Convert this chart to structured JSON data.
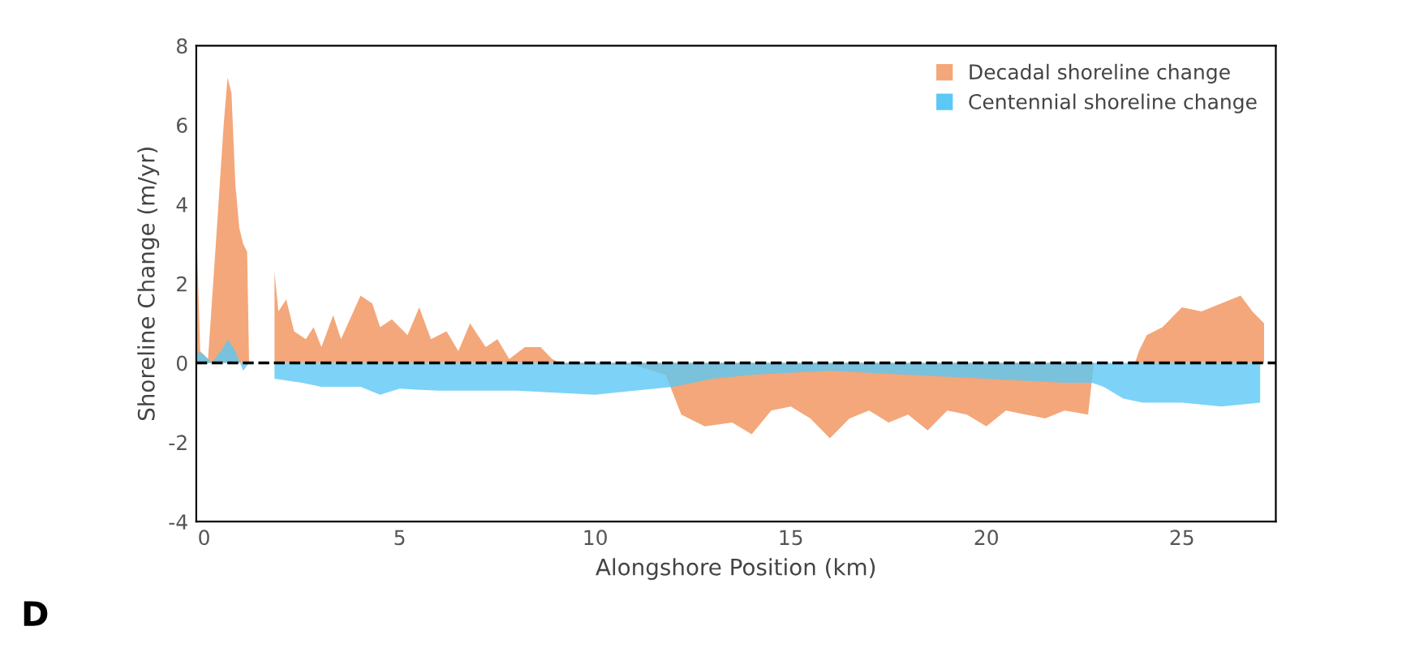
{
  "chart_data": {
    "type": "area",
    "xlabel": "Alongshore Position (km)",
    "ylabel": "Shoreline Change (m/yr)",
    "xlim": [
      -0.2,
      27.4
    ],
    "xticks": [
      0,
      5,
      10,
      15,
      20,
      25
    ],
    "ylim": [
      -4,
      8
    ],
    "yticks": [
      -4,
      -2,
      0,
      2,
      4,
      6,
      8
    ],
    "grid": false,
    "legend": "top right",
    "ref_lines": [
      {
        "axis": "y",
        "value": 0,
        "line_style": "dashed",
        "color": "#000000"
      }
    ],
    "annotations": [
      "D"
    ],
    "series": [
      {
        "name": "Decadal shoreline change",
        "color": "#f4a77a",
        "x": [
          -0.2,
          -0.1,
          0.1,
          0.3,
          0.5,
          0.6,
          0.7,
          0.8,
          0.9,
          1.0,
          1.1,
          1.15,
          1.3,
          1.8,
          1.9,
          2.1,
          2.3,
          2.6,
          2.8,
          3.0,
          3.3,
          3.5,
          4.0,
          4.3,
          4.5,
          4.8,
          5.2,
          5.5,
          5.8,
          6.2,
          6.5,
          6.8,
          7.2,
          7.5,
          7.8,
          8.2,
          8.6,
          8.9,
          9.2,
          10,
          11,
          11.8,
          12.2,
          12.8,
          13.5,
          14,
          14.5,
          15,
          15.5,
          16,
          16.5,
          17,
          17.5,
          18,
          18.5,
          19,
          19.5,
          20,
          20.5,
          21,
          21.5,
          22,
          22.6,
          22.75,
          23,
          23.8,
          23.9,
          24.1,
          24.5,
          25,
          25.5,
          26,
          26.5,
          26.8,
          27.1
        ],
        "values": [
          3.6,
          0.3,
          0.1,
          3,
          6.0,
          7.2,
          6.8,
          4.5,
          3.4,
          3.0,
          2.8,
          0,
          null,
          2.3,
          1.3,
          1.6,
          0.8,
          0.6,
          0.9,
          0.4,
          1.2,
          0.6,
          1.7,
          1.5,
          0.9,
          1.1,
          0.7,
          1.4,
          0.6,
          0.8,
          0.3,
          1.0,
          0.4,
          0.6,
          0.1,
          0.4,
          0.4,
          0.1,
          -0.05,
          -0.05,
          -0.05,
          -0.3,
          -1.3,
          -1.6,
          -1.5,
          -1.8,
          -1.2,
          -1.1,
          -1.4,
          -1.9,
          -1.4,
          -1.2,
          -1.5,
          -1.3,
          -1.7,
          -1.2,
          -1.3,
          -1.6,
          -1.2,
          -1.3,
          -1.4,
          -1.2,
          -1.3,
          0,
          0,
          0,
          0.3,
          0.7,
          0.9,
          1.4,
          1.3,
          1.5,
          1.7,
          1.3,
          1.0
        ]
      },
      {
        "name": "Centennial shoreline change",
        "color": "#5bc8f5",
        "x": [
          -0.2,
          0,
          0.2,
          0.5,
          0.6,
          0.8,
          1.0,
          1.15,
          1.3,
          1.8,
          2.5,
          3,
          4,
          4.5,
          5,
          6,
          7,
          8,
          9,
          10,
          11,
          12,
          13,
          14,
          16,
          18,
          20,
          22,
          22.7,
          23.0,
          23.5,
          24,
          25,
          26,
          27
        ],
        "values": [
          0.3,
          0.2,
          0,
          0.4,
          0.6,
          0.3,
          -0.2,
          0,
          null,
          -0.4,
          -0.5,
          -0.6,
          -0.6,
          -0.8,
          -0.65,
          -0.7,
          -0.7,
          -0.7,
          -0.75,
          -0.8,
          -0.7,
          -0.6,
          -0.4,
          -0.3,
          -0.2,
          -0.3,
          -0.4,
          -0.5,
          -0.5,
          -0.6,
          -0.9,
          -1.0,
          -1.0,
          -1.1,
          -1.0
        ]
      }
    ]
  }
}
